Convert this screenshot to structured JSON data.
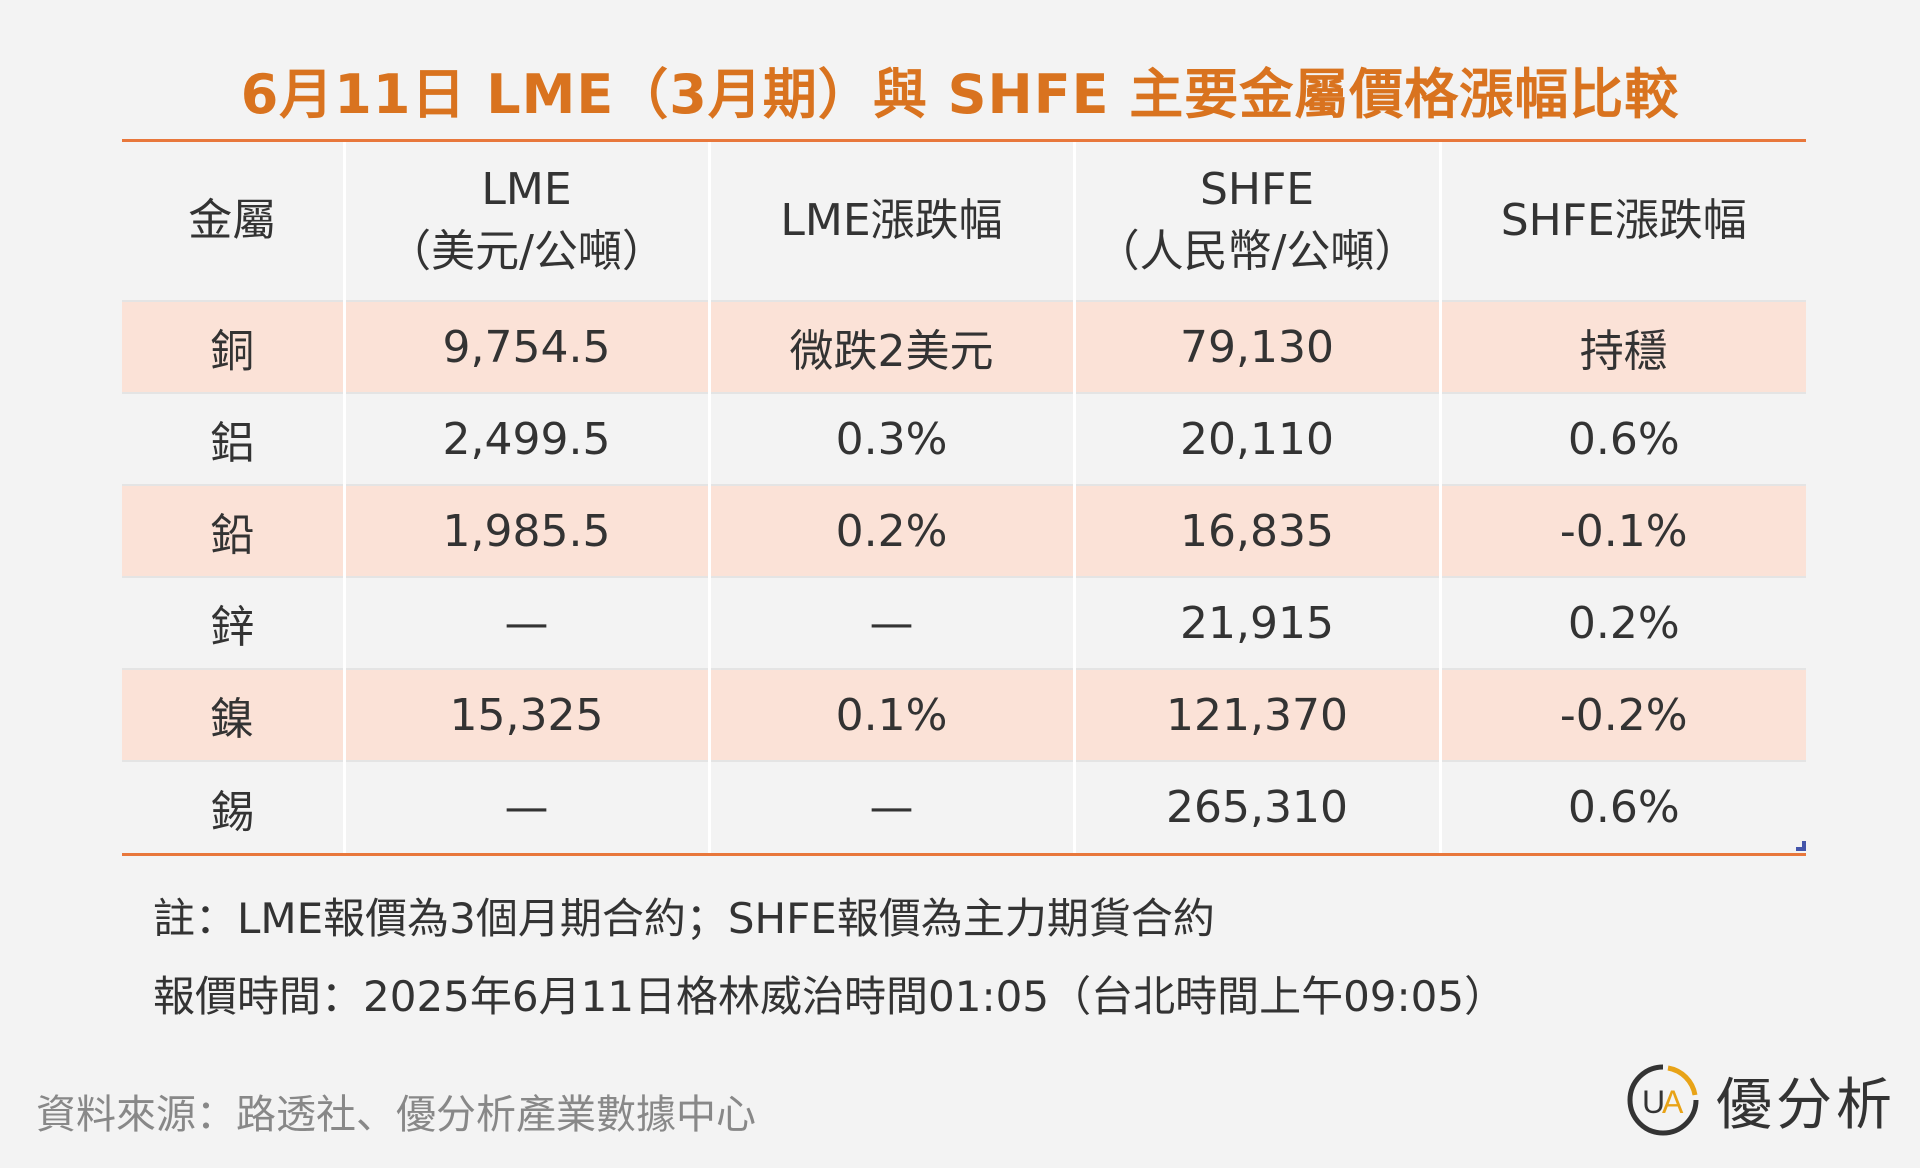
{
  "title": "6月11日 LME（3月期）與 SHFE 主要金屬價格漲幅比較",
  "table": {
    "headers": [
      {
        "line1": "金屬",
        "line2": ""
      },
      {
        "line1": "LME",
        "line2": "（美元/公噸）"
      },
      {
        "line1": "LME漲跌幅",
        "line2": ""
      },
      {
        "line1": "SHFE",
        "line2": "（人民幣/公噸）"
      },
      {
        "line1": "SHFE漲跌幅",
        "line2": ""
      }
    ],
    "rows": [
      {
        "metal": "銅",
        "lme": "9,754.5",
        "lme_change": "微跌2美元",
        "shfe": "79,130",
        "shfe_change": "持穩"
      },
      {
        "metal": "鋁",
        "lme": "2,499.5",
        "lme_change": "0.3%",
        "shfe": "20,110",
        "shfe_change": "0.6%"
      },
      {
        "metal": "鉛",
        "lme": "1,985.5",
        "lme_change": "0.2%",
        "shfe": "16,835",
        "shfe_change": "-0.1%"
      },
      {
        "metal": "鋅",
        "lme": "—",
        "lme_change": "—",
        "shfe": "21,915",
        "shfe_change": "0.2%"
      },
      {
        "metal": "鎳",
        "lme": "15,325",
        "lme_change": "0.1%",
        "shfe": "121,370",
        "shfe_change": "-0.2%"
      },
      {
        "metal": "錫",
        "lme": "—",
        "lme_change": "—",
        "shfe": "265,310",
        "shfe_change": "0.6%"
      }
    ]
  },
  "notes": {
    "note": "註：LME報價為3個月期合約；SHFE報價為主力期貨合約",
    "quote_time": "報價時間：2025年6月11日格林威治時間01:05（台北時間上午09:05）"
  },
  "source": "資料來源：路透社、優分析產業數據中心",
  "brand": {
    "name": "優分析",
    "logo_text": "UA",
    "accent_color": "#e8a317"
  },
  "colors": {
    "title": "#d9731f",
    "rule": "#e8773b",
    "row_highlight": "#fbe2d7"
  }
}
